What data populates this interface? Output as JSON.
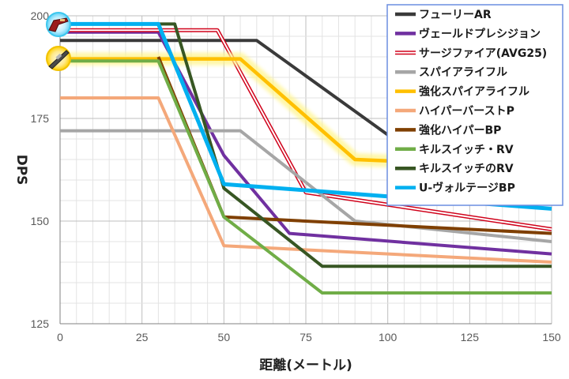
{
  "chart_data": {
    "type": "line",
    "title": "",
    "xlabel": "距離(メートル)",
    "ylabel": "DPS",
    "xlim": [
      0,
      150
    ],
    "ylim": [
      125,
      200
    ],
    "xticks": [
      0,
      25,
      50,
      75,
      100,
      125,
      150
    ],
    "yticks": [
      125,
      150,
      175,
      200
    ],
    "grid": true,
    "legend_position": "top-right",
    "series": [
      {
        "name": "フューリーAR",
        "color": "#3a3a3a",
        "style": "solid",
        "x": [
          0,
          30,
          60,
          100,
          150
        ],
        "y": [
          194,
          194,
          194,
          171,
          163
        ]
      },
      {
        "name": "ヴェールドプレシジョン",
        "color": "#7030a0",
        "style": "solid",
        "x": [
          0,
          30,
          50,
          70,
          150
        ],
        "y": [
          196,
          196,
          166,
          147,
          142
        ]
      },
      {
        "name": "サージファイア(AVG25)",
        "color": "#d0021b",
        "style": "double",
        "x": [
          0,
          48,
          75,
          150
        ],
        "y": [
          196.5,
          196.5,
          157,
          148
        ]
      },
      {
        "name": "スパイアライフル",
        "color": "#a6a6a6",
        "style": "solid",
        "x": [
          0,
          55,
          90,
          150
        ],
        "y": [
          172,
          172,
          150,
          145
        ]
      },
      {
        "name": "強化スパイアライフル",
        "color": "#ffc000",
        "style": "glow",
        "x": [
          0,
          55,
          90,
          150
        ],
        "y": [
          189.5,
          189.5,
          165,
          163
        ]
      },
      {
        "name": "ハイパーバーストP",
        "color": "#f4a87a",
        "style": "solid",
        "x": [
          0,
          30,
          50,
          150
        ],
        "y": [
          180,
          180,
          144,
          140
        ]
      },
      {
        "name": "強化ハイパーBP",
        "color": "#7f3f00",
        "style": "solid",
        "x": [
          30,
          50,
          150
        ],
        "y": [
          190,
          151,
          147
        ]
      },
      {
        "name": "キルスイッチ・RV",
        "color": "#70ad47",
        "style": "solid",
        "x": [
          0,
          30,
          50,
          80,
          150
        ],
        "y": [
          189,
          189,
          151,
          132.5,
          132.5
        ]
      },
      {
        "name": "キルスイッチのRV",
        "color": "#375623",
        "style": "solid",
        "x": [
          0,
          35,
          50,
          80,
          150
        ],
        "y": [
          198,
          198,
          158,
          139,
          139
        ]
      },
      {
        "name": "U-ヴォルテージBP",
        "color": "#00b0f0",
        "style": "solid",
        "x": [
          0,
          30,
          50,
          100,
          150
        ],
        "y": [
          198,
          198,
          159,
          156,
          153
        ]
      }
    ]
  }
}
